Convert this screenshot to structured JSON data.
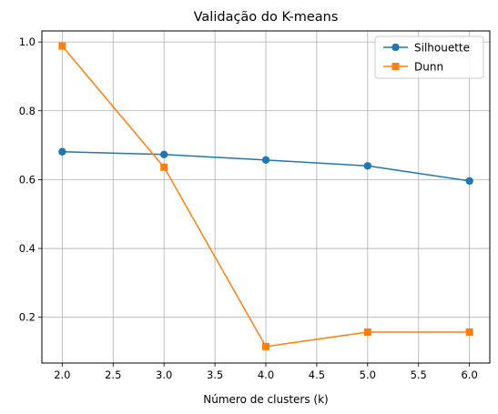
{
  "chart_data": {
    "type": "line",
    "title": "Validação do K-means",
    "xlabel": "Número de clusters (k)",
    "ylabel": "",
    "x": [
      2,
      3,
      4,
      5,
      6
    ],
    "xlim": [
      1.8,
      6.2
    ],
    "ylim": [
      0.067,
      1.032
    ],
    "xticks": [
      "2.0",
      "2.5",
      "3.0",
      "3.5",
      "4.0",
      "4.5",
      "5.0",
      "5.5",
      "6.0"
    ],
    "yticks": [
      "0.2",
      "0.4",
      "0.6",
      "0.8",
      "1.0"
    ],
    "grid": true,
    "legend_position": "top-right",
    "series": [
      {
        "name": "Silhouette",
        "marker": "circle",
        "color": "#1f77b4",
        "values": [
          0.681,
          0.673,
          0.657,
          0.64,
          0.596
        ]
      },
      {
        "name": "Dunn",
        "marker": "square",
        "color": "#ff7f0e",
        "values": [
          0.988,
          0.636,
          0.115,
          0.157,
          0.157
        ]
      }
    ]
  }
}
